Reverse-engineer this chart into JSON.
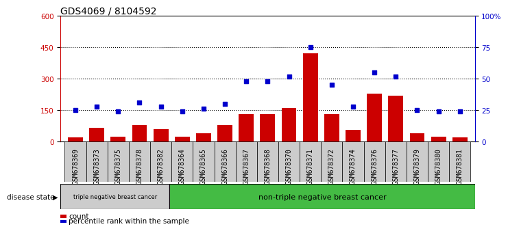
{
  "title": "GDS4069 / 8104592",
  "samples": [
    "GSM678369",
    "GSM678373",
    "GSM678375",
    "GSM678378",
    "GSM678382",
    "GSM678364",
    "GSM678365",
    "GSM678366",
    "GSM678367",
    "GSM678368",
    "GSM678370",
    "GSM678371",
    "GSM678372",
    "GSM678374",
    "GSM678376",
    "GSM678377",
    "GSM678379",
    "GSM678380",
    "GSM678381"
  ],
  "counts": [
    20,
    65,
    25,
    80,
    60,
    25,
    40,
    80,
    130,
    130,
    160,
    420,
    130,
    55,
    230,
    220,
    40,
    25,
    20
  ],
  "percentiles": [
    25,
    28,
    24,
    31,
    28,
    24,
    26,
    30,
    48,
    48,
    52,
    75,
    45,
    28,
    55,
    52,
    25,
    24,
    24
  ],
  "group1_label": "triple negative breast cancer",
  "group2_label": "non-triple negative breast cancer",
  "group1_count": 5,
  "group2_count": 14,
  "left_ylim": [
    0,
    600
  ],
  "left_yticks": [
    0,
    150,
    300,
    450,
    600
  ],
  "right_ylim": [
    0,
    100
  ],
  "right_yticks": [
    0,
    25,
    50,
    75,
    100
  ],
  "right_yticklabels": [
    "0",
    "25",
    "50",
    "75",
    "100%"
  ],
  "bar_color": "#cc0000",
  "dot_color": "#0000cc",
  "plot_bg_color": "#ffffff",
  "tick_bg_color": "#cccccc",
  "group1_bg": "#cccccc",
  "group2_bg": "#44bb44",
  "disease_state_label": "disease state",
  "legend_count_label": "count",
  "legend_pct_label": "percentile rank within the sample",
  "dotted_line_color": "#000000",
  "title_fontsize": 10,
  "tick_fontsize": 7,
  "legend_fontsize": 7.5
}
